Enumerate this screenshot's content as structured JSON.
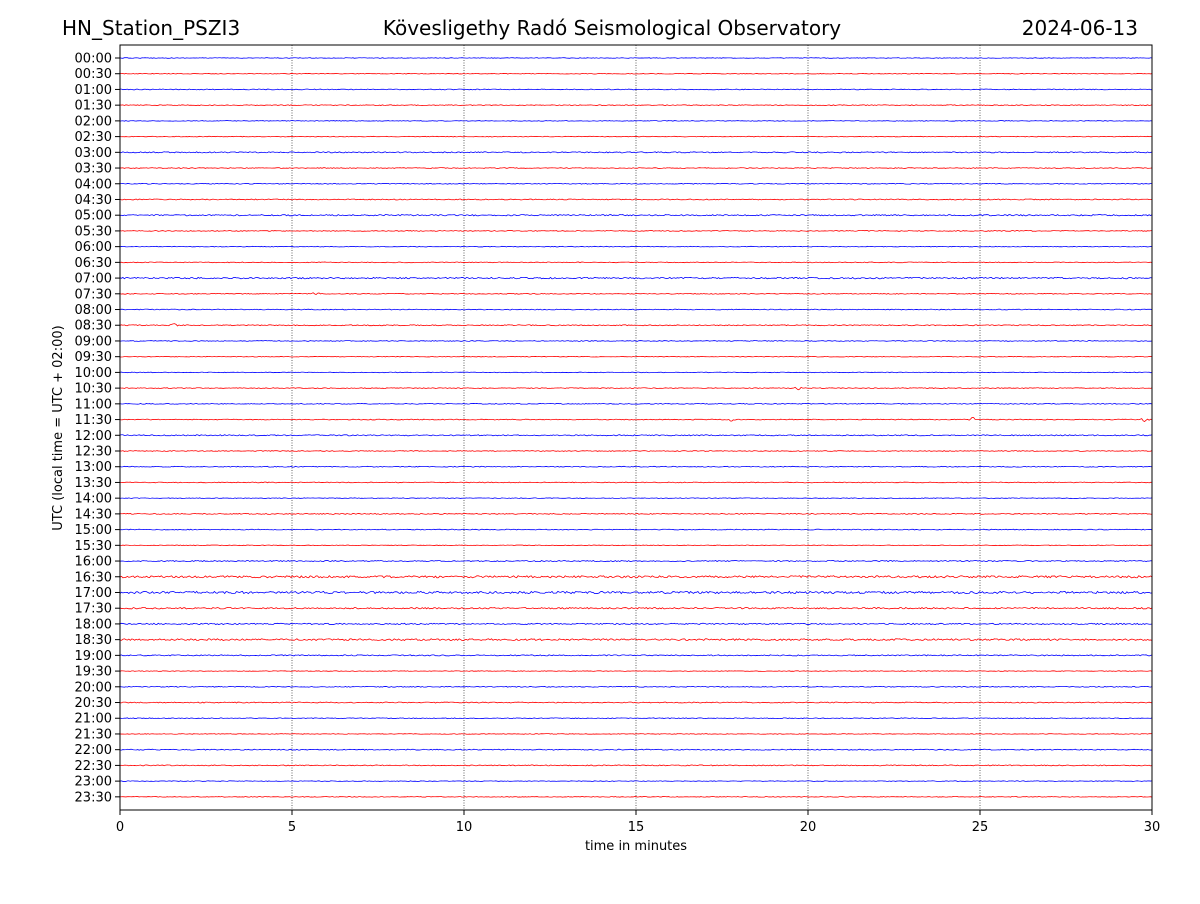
{
  "chart_data": {
    "type": "line",
    "title_left": "HN_Station_PSZI3",
    "title": "Kövesligethy Radó Seismological Observatory",
    "title_right": "2024-06-13",
    "xlabel": "time in minutes",
    "ylabel": "UTC (local time = UTC + 02:00)",
    "xlim": [
      0,
      30
    ],
    "x_ticks": [
      "0",
      "5",
      "10",
      "15",
      "20",
      "25",
      "30"
    ],
    "x_tick_values": [
      0,
      5,
      10,
      15,
      20,
      25,
      30
    ],
    "grid": "vertical dotted at x ticks",
    "colors": {
      "hour": "#0000ff",
      "half_hour": "#ff0000",
      "grid": "#000000"
    },
    "rows": [
      {
        "label": "00:00",
        "noise": 0.4
      },
      {
        "label": "00:30",
        "noise": 0.4
      },
      {
        "label": "01:00",
        "noise": 0.5
      },
      {
        "label": "01:30",
        "noise": 0.5
      },
      {
        "label": "02:00",
        "noise": 0.4
      },
      {
        "label": "02:30",
        "noise": 0.4
      },
      {
        "label": "03:00",
        "noise": 0.7
      },
      {
        "label": "03:30",
        "noise": 0.5
      },
      {
        "label": "04:00",
        "noise": 0.5
      },
      {
        "label": "04:30",
        "noise": 0.6
      },
      {
        "label": "05:00",
        "noise": 0.8
      },
      {
        "label": "05:30",
        "noise": 0.5
      },
      {
        "label": "06:00",
        "noise": 0.4
      },
      {
        "label": "06:30",
        "noise": 0.5
      },
      {
        "label": "07:00",
        "noise": 0.9
      },
      {
        "label": "07:30",
        "noise": 0.5
      },
      {
        "label": "08:00",
        "noise": 0.5
      },
      {
        "label": "08:30",
        "noise": 0.6
      },
      {
        "label": "09:00",
        "noise": 0.5
      },
      {
        "label": "09:30",
        "noise": 0.4
      },
      {
        "label": "10:00",
        "noise": 0.4
      },
      {
        "label": "10:30",
        "noise": 0.5
      },
      {
        "label": "11:00",
        "noise": 0.5
      },
      {
        "label": "11:30",
        "noise": 0.5
      },
      {
        "label": "12:00",
        "noise": 0.7
      },
      {
        "label": "12:30",
        "noise": 0.5
      },
      {
        "label": "13:00",
        "noise": 0.5
      },
      {
        "label": "13:30",
        "noise": 0.5
      },
      {
        "label": "14:00",
        "noise": 0.4
      },
      {
        "label": "14:30",
        "noise": 0.6
      },
      {
        "label": "15:00",
        "noise": 0.5
      },
      {
        "label": "15:30",
        "noise": 0.4
      },
      {
        "label": "16:00",
        "noise": 0.7
      },
      {
        "label": "16:30",
        "noise": 1.3
      },
      {
        "label": "17:00",
        "noise": 1.4
      },
      {
        "label": "17:30",
        "noise": 0.9
      },
      {
        "label": "18:00",
        "noise": 0.8
      },
      {
        "label": "18:30",
        "noise": 1.1
      },
      {
        "label": "19:00",
        "noise": 0.7
      },
      {
        "label": "19:30",
        "noise": 0.4
      },
      {
        "label": "20:00",
        "noise": 0.5
      },
      {
        "label": "20:30",
        "noise": 0.6
      },
      {
        "label": "21:00",
        "noise": 0.5
      },
      {
        "label": "21:30",
        "noise": 0.4
      },
      {
        "label": "22:00",
        "noise": 0.6
      },
      {
        "label": "22:30",
        "noise": 0.6
      },
      {
        "label": "23:00",
        "noise": 0.4
      },
      {
        "label": "23:30",
        "noise": 0.4
      }
    ],
    "events": [
      {
        "row": "11:30",
        "minute": 17.8,
        "amplitude": 4
      },
      {
        "row": "11:30",
        "minute": 24.8,
        "amplitude": 3
      },
      {
        "row": "11:30",
        "minute": 29.8,
        "amplitude": 3
      },
      {
        "row": "07:30",
        "minute": 5.7,
        "amplitude": 2
      },
      {
        "row": "10:30",
        "minute": 19.7,
        "amplitude": 2
      },
      {
        "row": "08:30",
        "minute": 1.6,
        "amplitude": 2
      }
    ]
  }
}
